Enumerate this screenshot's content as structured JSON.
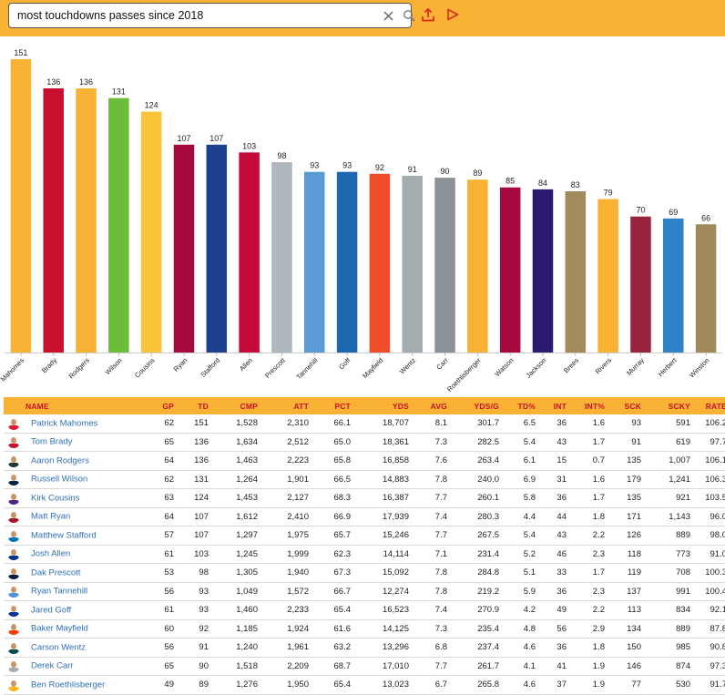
{
  "search": {
    "query": "most touchdowns passes since 2018"
  },
  "icons": {
    "clear": "close-icon",
    "search": "search-icon",
    "share": "upload-icon",
    "run": "play-icon"
  },
  "colors": {
    "accent": "#f9b233",
    "header_text": "#c8102e",
    "link": "#2f6fb5"
  },
  "chart_data": {
    "type": "bar",
    "categories": [
      "Mahomes",
      "Brady",
      "Rodgers",
      "Wilson",
      "Cousins",
      "Ryan",
      "Stafford",
      "Allen",
      "Prescott",
      "Tannehill",
      "Goff",
      "Mayfield",
      "Wentz",
      "Carr",
      "Roethlisberger",
      "Watson",
      "Jackson",
      "Brees",
      "Rivers",
      "Murray",
      "Herbert",
      "Winston"
    ],
    "values": [
      151,
      136,
      136,
      131,
      124,
      107,
      107,
      103,
      98,
      93,
      93,
      92,
      91,
      90,
      89,
      85,
      84,
      83,
      79,
      70,
      69,
      66
    ],
    "colors": [
      "#f9b233",
      "#c8102e",
      "#f9b233",
      "#6cbd3a",
      "#fbc43a",
      "#a6093d",
      "#1f3f8f",
      "#c4093b",
      "#b0b7bc",
      "#5a9bd5",
      "#1f66b0",
      "#f04c2a",
      "#a5acaf",
      "#8a9199",
      "#f9b233",
      "#a6093d",
      "#2b1a6e",
      "#a38a5c",
      "#f9b233",
      "#97233f",
      "#2d82c8",
      "#a08a5b"
    ],
    "ylim": [
      0,
      160
    ],
    "grid": false,
    "data_labels": true
  },
  "table": {
    "headers": [
      "NAME",
      "GP",
      "TD",
      "CMP",
      "ATT",
      "PCT",
      "YDS",
      "AVG",
      "YDS/G",
      "TD%",
      "INT",
      "INT%",
      "SCK",
      "SCKY",
      "RATE"
    ],
    "rows": [
      {
        "name": "Patrick Mahomes",
        "color": "#e31837",
        "cells": [
          "62",
          "151",
          "1,528",
          "2,310",
          "66.1",
          "18,707",
          "8.1",
          "301.7",
          "6.5",
          "36",
          "1.6",
          "93",
          "591",
          "106.2"
        ]
      },
      {
        "name": "Tom Brady",
        "color": "#c8102e",
        "cells": [
          "65",
          "136",
          "1,634",
          "2,512",
          "65.0",
          "18,361",
          "7.3",
          "282.5",
          "5.4",
          "43",
          "1.7",
          "91",
          "619",
          "97.7"
        ]
      },
      {
        "name": "Aaron Rodgers",
        "color": "#203731",
        "cells": [
          "64",
          "136",
          "1,463",
          "2,223",
          "65.8",
          "16,858",
          "7.6",
          "263.4",
          "6.1",
          "15",
          "0.7",
          "135",
          "1,007",
          "106.1"
        ]
      },
      {
        "name": "Russell Wilson",
        "color": "#002244",
        "cells": [
          "62",
          "131",
          "1,264",
          "1,901",
          "66.5",
          "14,883",
          "7.8",
          "240.0",
          "6.9",
          "31",
          "1.6",
          "179",
          "1,241",
          "106.3"
        ]
      },
      {
        "name": "Kirk Cousins",
        "color": "#4f2683",
        "cells": [
          "63",
          "124",
          "1,453",
          "2,127",
          "68.3",
          "16,387",
          "7.7",
          "260.1",
          "5.8",
          "36",
          "1.7",
          "135",
          "921",
          "103.5"
        ]
      },
      {
        "name": "Matt Ryan",
        "color": "#a71930",
        "cells": [
          "64",
          "107",
          "1,612",
          "2,410",
          "66.9",
          "17,939",
          "7.4",
          "280.3",
          "4.4",
          "44",
          "1.8",
          "171",
          "1,143",
          "96.0"
        ]
      },
      {
        "name": "Matthew Stafford",
        "color": "#0076b6",
        "cells": [
          "57",
          "107",
          "1,297",
          "1,975",
          "65.7",
          "15,246",
          "7.7",
          "267.5",
          "5.4",
          "43",
          "2.2",
          "126",
          "889",
          "98.0"
        ]
      },
      {
        "name": "Josh Allen",
        "color": "#00338d",
        "cells": [
          "61",
          "103",
          "1,245",
          "1,999",
          "62.3",
          "14,114",
          "7.1",
          "231.4",
          "5.2",
          "46",
          "2.3",
          "118",
          "773",
          "91.0"
        ]
      },
      {
        "name": "Dak Prescott",
        "color": "#041e42",
        "cells": [
          "53",
          "98",
          "1,305",
          "1,940",
          "67.3",
          "15,092",
          "7.8",
          "284.8",
          "5.1",
          "33",
          "1.7",
          "119",
          "708",
          "100.3"
        ]
      },
      {
        "name": "Ryan Tannehill",
        "color": "#4b92db",
        "cells": [
          "56",
          "93",
          "1,049",
          "1,572",
          "66.7",
          "12,274",
          "7.8",
          "219.2",
          "5.9",
          "36",
          "2.3",
          "137",
          "991",
          "100.4"
        ]
      },
      {
        "name": "Jared Goff",
        "color": "#003594",
        "cells": [
          "61",
          "93",
          "1,460",
          "2,233",
          "65.4",
          "16,523",
          "7.4",
          "270.9",
          "4.2",
          "49",
          "2.2",
          "113",
          "834",
          "92.1"
        ]
      },
      {
        "name": "Baker Mayfield",
        "color": "#ff3c00",
        "cells": [
          "60",
          "92",
          "1,185",
          "1,924",
          "61.6",
          "14,125",
          "7.3",
          "235.4",
          "4.8",
          "56",
          "2.9",
          "134",
          "889",
          "87.8"
        ]
      },
      {
        "name": "Carson Wentz",
        "color": "#004c54",
        "cells": [
          "56",
          "91",
          "1,240",
          "1,961",
          "63.2",
          "13,296",
          "6.8",
          "237.4",
          "4.6",
          "36",
          "1.8",
          "150",
          "985",
          "90.8"
        ]
      },
      {
        "name": "Derek Carr",
        "color": "#a5acaf",
        "cells": [
          "65",
          "90",
          "1,518",
          "2,209",
          "68.7",
          "17,010",
          "7.7",
          "261.7",
          "4.1",
          "41",
          "1.9",
          "146",
          "874",
          "97.3"
        ]
      },
      {
        "name": "Ben Roethlisberger",
        "color": "#ffb612",
        "cells": [
          "49",
          "89",
          "1,276",
          "1,950",
          "65.4",
          "13,023",
          "6.7",
          "265.8",
          "4.6",
          "37",
          "1.9",
          "77",
          "530",
          "91.7"
        ]
      }
    ]
  }
}
